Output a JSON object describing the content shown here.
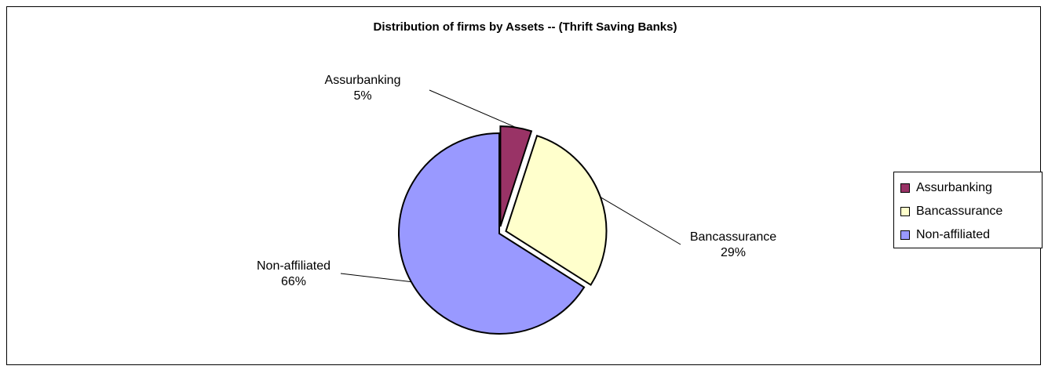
{
  "chart_data": {
    "type": "pie",
    "title": "Distribution of firms by Assets  -- (Thrift Saving Banks)",
    "slices": [
      {
        "label": "Assurbanking",
        "value": 5,
        "value_label": "5%",
        "color": "#993366",
        "exploded": true
      },
      {
        "label": "Bancassurance",
        "value": 29,
        "value_label": "29%",
        "color": "#FFFFCC",
        "exploded": true
      },
      {
        "label": "Non-affiliated",
        "value": 66,
        "value_label": "66%",
        "color": "#9999FF",
        "exploded": false
      }
    ],
    "legend_position": "right"
  }
}
